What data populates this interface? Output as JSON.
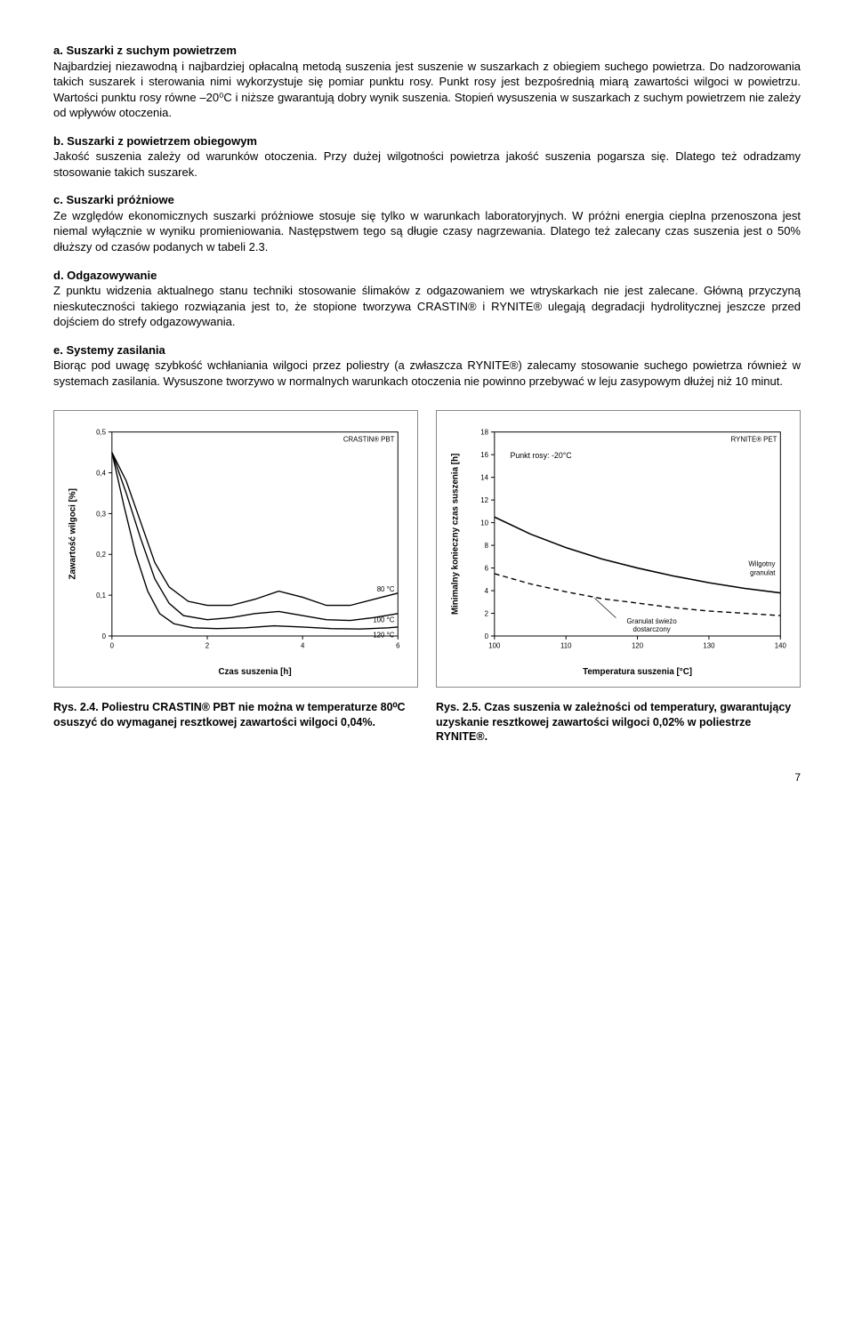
{
  "sections": {
    "a": {
      "heading": "a. Suszarki z suchym powietrzem",
      "body": "Najbardziej niezawodną i najbardziej opłacalną metodą suszenia jest suszenie w suszarkach z obiegiem suchego powietrza. Do nadzorowania takich suszarek i sterowania nimi wykorzystuje się pomiar punktu rosy. Punkt rosy jest bezpośrednią miarą zawartości wilgoci w powietrzu. Wartości punktu rosy równe –20⁰C i niższe gwarantują dobry wynik suszenia. Stopień wysuszenia w suszarkach z suchym powietrzem nie zależy od wpływów otoczenia."
    },
    "b": {
      "heading": "b. Suszarki z powietrzem obiegowym",
      "body": "Jakość suszenia zależy od warunków otoczenia. Przy dużej wilgotności powietrza jakość suszenia pogarsza się. Dlatego też odradzamy stosowanie takich suszarek."
    },
    "c": {
      "heading": "c. Suszarki próżniowe",
      "body": "Ze względów ekonomicznych suszarki próżniowe stosuje się tylko w warunkach laboratoryjnych. W próżni energia cieplna przenoszona jest niemal wyłącznie w wyniku promieniowania. Następstwem tego są długie czasy nagrzewania. Dlatego też zalecany czas suszenia jest o 50% dłuższy od czasów podanych w tabeli 2.3."
    },
    "d": {
      "heading": "d. Odgazowywanie",
      "body": "Z punktu widzenia aktualnego stanu techniki stosowanie ślimaków z odgazowaniem we wtryskarkach nie jest zalecane. Główną przyczyną nieskuteczności takiego rozwiązania jest to, że stopione tworzywa CRASTIN® i RYNITE® ulegają degradacji hydrolitycznej jeszcze przed dojściem do strefy odgazowywania."
    },
    "e": {
      "heading": "e. Systemy zasilania",
      "body": "Biorąc pod uwagę szybkość wchłaniania wilgoci przez poliestry (a zwłaszcza RYNITE®) zalecamy stosowanie suchego powietrza również w systemach zasilania. Wysuszone tworzywo w normalnych warunkach otoczenia nie powinno przebywać w leju zasypowym dłużej niż 10 minut."
    }
  },
  "chart_left": {
    "type": "line",
    "product_label": "CRASTIN® PBT",
    "x_label": "Czas suszenia [h]",
    "y_label": "Zawartość wilgoci [%]",
    "xlim": [
      0,
      6
    ],
    "x_ticks": [
      0,
      2,
      4,
      6
    ],
    "ylim": [
      0,
      0.5
    ],
    "y_ticks": [
      0,
      0.1,
      0.2,
      0.3,
      0.4,
      0.5
    ],
    "background_color": "#ffffff",
    "axis_color": "#000000",
    "grid_on": false,
    "line_color": "#000000",
    "line_width": 1.4,
    "series": {
      "80C": {
        "label": "80 °C",
        "points": [
          [
            0,
            0.45
          ],
          [
            0.3,
            0.38
          ],
          [
            0.6,
            0.28
          ],
          [
            0.9,
            0.18
          ],
          [
            1.2,
            0.12
          ],
          [
            1.6,
            0.085
          ],
          [
            2.0,
            0.075
          ],
          [
            2.5,
            0.075
          ],
          [
            3.0,
            0.09
          ],
          [
            3.5,
            0.11
          ],
          [
            4.0,
            0.095
          ],
          [
            4.5,
            0.075
          ],
          [
            5.0,
            0.075
          ],
          [
            5.5,
            0.09
          ],
          [
            6.0,
            0.105
          ]
        ]
      },
      "100C": {
        "label": "100 °C",
        "points": [
          [
            0,
            0.45
          ],
          [
            0.3,
            0.35
          ],
          [
            0.6,
            0.24
          ],
          [
            0.9,
            0.14
          ],
          [
            1.2,
            0.08
          ],
          [
            1.5,
            0.05
          ],
          [
            2.0,
            0.04
          ],
          [
            2.5,
            0.045
          ],
          [
            3.0,
            0.055
          ],
          [
            3.5,
            0.06
          ],
          [
            4.0,
            0.05
          ],
          [
            4.5,
            0.04
          ],
          [
            5.0,
            0.038
          ],
          [
            5.5,
            0.045
          ],
          [
            6.0,
            0.055
          ]
        ]
      },
      "120C": {
        "label": "120 °C",
        "points": [
          [
            0,
            0.45
          ],
          [
            0.25,
            0.32
          ],
          [
            0.5,
            0.2
          ],
          [
            0.75,
            0.11
          ],
          [
            1.0,
            0.055
          ],
          [
            1.3,
            0.03
          ],
          [
            1.7,
            0.02
          ],
          [
            2.2,
            0.018
          ],
          [
            2.8,
            0.02
          ],
          [
            3.4,
            0.025
          ],
          [
            4.0,
            0.022
          ],
          [
            4.6,
            0.018
          ],
          [
            5.2,
            0.017
          ],
          [
            5.8,
            0.02
          ],
          [
            6.0,
            0.022
          ]
        ]
      }
    },
    "series_label_fontsize": 8,
    "axis_label_fontsize": 10,
    "tick_fontsize": 8
  },
  "chart_right": {
    "type": "line",
    "product_label": "RYNITE® PET",
    "annotation": "Punkt rosy: -20°C",
    "x_label": "Temperatura suszenia [°C]",
    "y_label": "Minimalny konieczny czas suszenia [h]",
    "xlim": [
      100,
      140
    ],
    "x_ticks": [
      100,
      110,
      120,
      130,
      140
    ],
    "ylim": [
      0,
      18
    ],
    "y_ticks": [
      0,
      2,
      4,
      6,
      8,
      10,
      12,
      14,
      16,
      18
    ],
    "background_color": "#ffffff",
    "axis_color": "#000000",
    "grid_on": false,
    "series": {
      "wet": {
        "label": "Wilgotny granulat",
        "line_color": "#000000",
        "line_width": 1.6,
        "dash": "none",
        "points": [
          [
            100,
            10.5
          ],
          [
            105,
            9.0
          ],
          [
            110,
            7.8
          ],
          [
            115,
            6.8
          ],
          [
            120,
            6.0
          ],
          [
            125,
            5.3
          ],
          [
            130,
            4.7
          ],
          [
            135,
            4.2
          ],
          [
            140,
            3.8
          ]
        ]
      },
      "fresh": {
        "label": "Granulat świeżo dostarczony",
        "line_color": "#000000",
        "line_width": 1.4,
        "dash": "6,4",
        "points": [
          [
            100,
            5.5
          ],
          [
            105,
            4.6
          ],
          [
            110,
            3.9
          ],
          [
            115,
            3.3
          ],
          [
            120,
            2.9
          ],
          [
            125,
            2.5
          ],
          [
            130,
            2.2
          ],
          [
            135,
            2.0
          ],
          [
            140,
            1.8
          ]
        ]
      }
    },
    "series_label_fontsize": 8,
    "axis_label_fontsize": 10,
    "tick_fontsize": 8
  },
  "captions": {
    "left": {
      "fig": "Rys. 2.4.",
      "text": "Poliestru CRASTIN® PBT nie można w temperaturze 80⁰C osuszyć do wymaganej resztkowej zawartości wilgoci 0,04%."
    },
    "right": {
      "fig": "Rys. 2.5.",
      "text": "Czas suszenia w zależności od temperatury, gwarantujący uzyskanie resztkowej zawartości wilgoci 0,02% w poliestrze RYNITE®."
    }
  },
  "page_number": "7"
}
